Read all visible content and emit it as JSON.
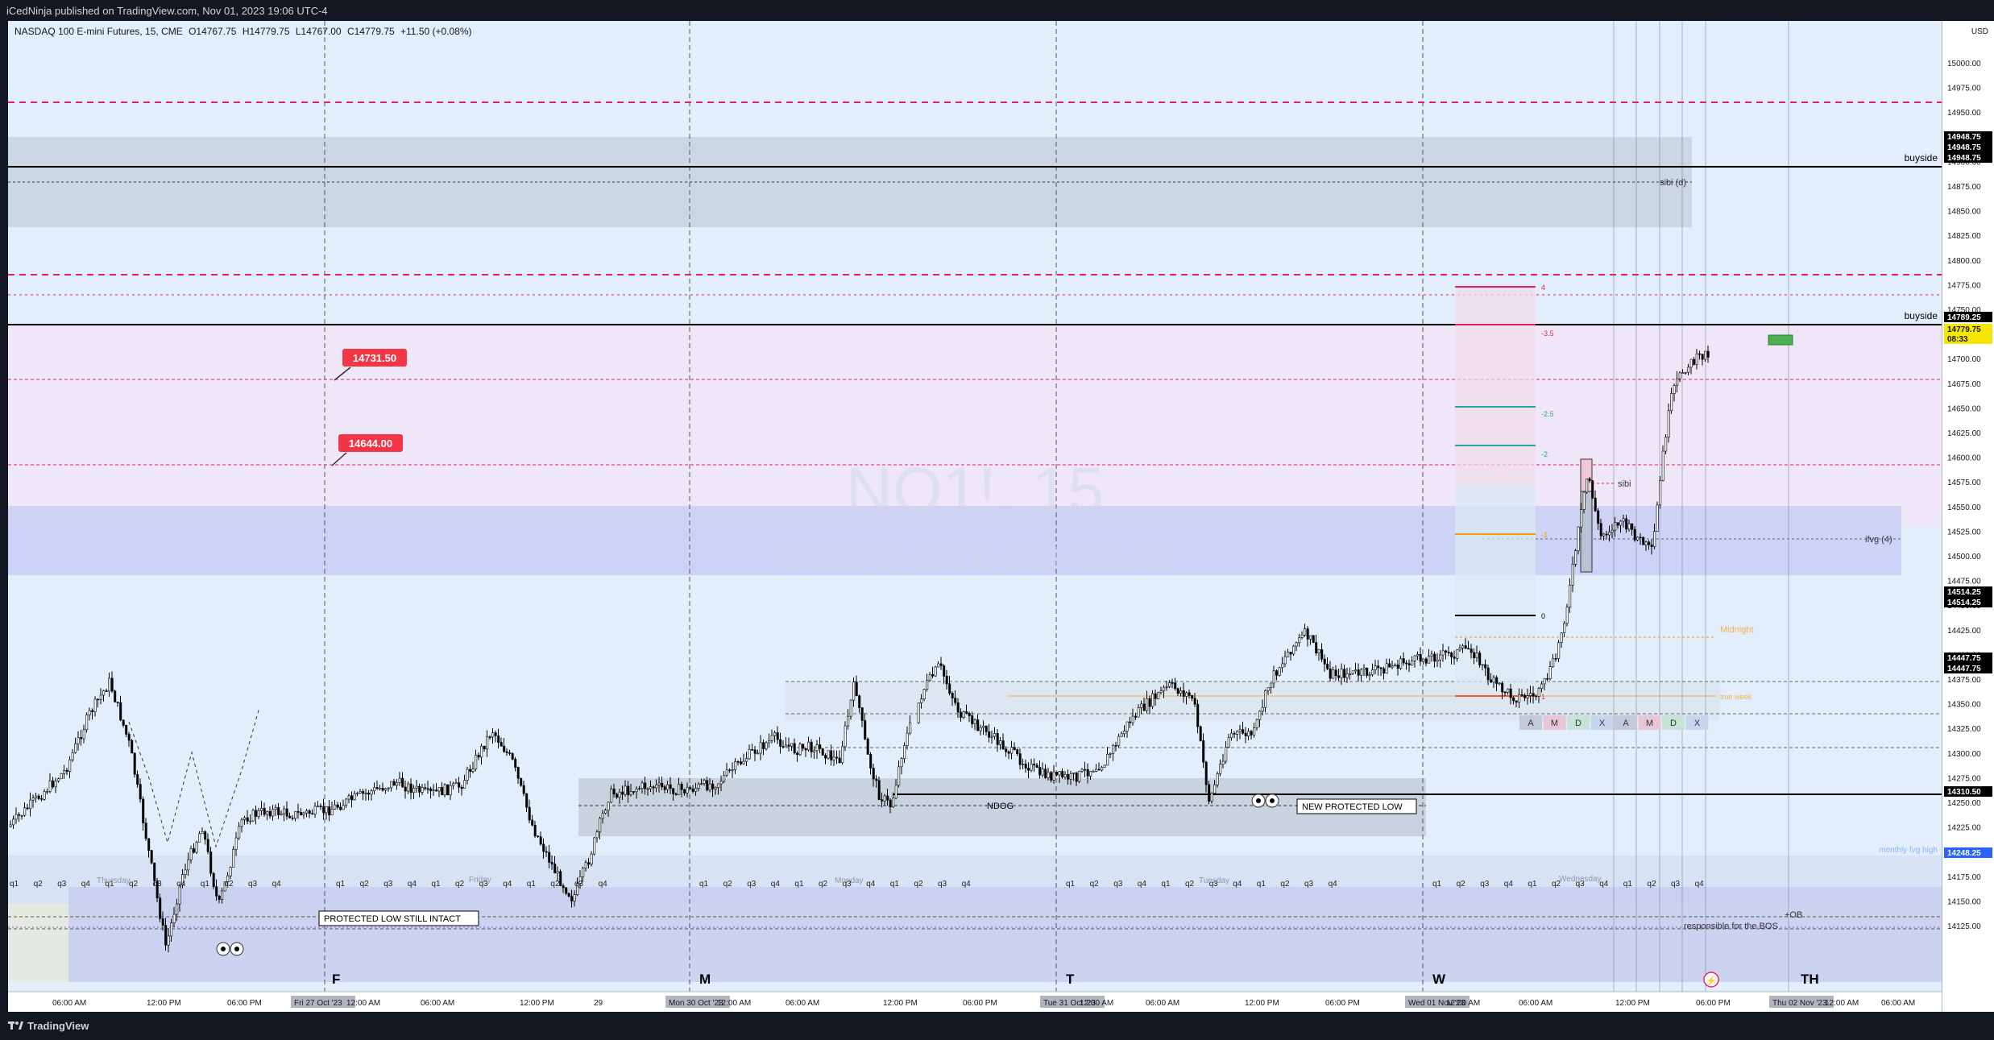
{
  "published_by": "iCedNinja published on TradingView.com, Nov 01, 2023 19:06 UTC-4",
  "brand": "TradingView",
  "legend": {
    "symbol": "NASDAQ 100 E-mini Futures, 15, CME",
    "open": "O14767.75",
    "high": "H14779.75",
    "low": "L14767.00",
    "close": "C14779.75",
    "change": "+11.50 (+0.08%)"
  },
  "watermark": {
    "ticker": "NQ1!, 15",
    "name": "NASDAQ 100 E-mini Futures"
  },
  "currency": "USD",
  "price_ticks": [
    "15000.00",
    "14975.00",
    "14950.00",
    "14925.00",
    "14900.00",
    "14875.00",
    "14850.00",
    "14825.00",
    "14800.00",
    "14775.00",
    "14750.00",
    "14725.00",
    "14700.00",
    "14675.00",
    "14650.00",
    "14625.00",
    "14600.00",
    "14575.00",
    "14550.00",
    "14525.00",
    "14500.00",
    "14475.00",
    "14450.00",
    "14425.00",
    "14400.00",
    "14375.00",
    "14350.00",
    "14325.00",
    "14300.00",
    "14275.00",
    "14250.00",
    "14225.00",
    "14200.00",
    "14175.00",
    "14150.00",
    "14125.00"
  ],
  "price_labels": {
    "buyside_high": [
      "14948.75",
      "14948.75",
      "14948.75"
    ],
    "buyside": "14789.25",
    "last_price": "14779.75",
    "countdown": "08:33",
    "midnight": [
      "14514.25",
      "14514.25"
    ],
    "mid2": [
      "14447.75",
      "14447.75"
    ],
    "sellside": "14310.50",
    "monthly": "14248.25"
  },
  "annotations": {
    "buyside_top": "buyside",
    "buyside_mid": "buyside",
    "sibi_d": "sibi (d)",
    "sibi": "sibi",
    "ifvg": "ifvg (4)",
    "midnight": "Midnight",
    "true_week": "true week",
    "ndog": "NDOG",
    "new_protected_low": "NEW PROTECTED LOW",
    "protected_low": "PROTECTED LOW STILL INTACT",
    "monthly_fvg": "monthly fvg high",
    "plus_ob": "+OB",
    "responsible": "responsible for the BOS",
    "marker_1": "14731.50",
    "marker_2": "14644.00"
  },
  "fib_levels": [
    "4",
    "-3.5",
    "-2.5",
    "-2",
    "-1",
    "0",
    "1"
  ],
  "session_boxes": [
    "A",
    "M",
    "D",
    "X",
    "A",
    "M",
    "D",
    "X"
  ],
  "quarter_labels": [
    "q1",
    "q2",
    "q3",
    "q4"
  ],
  "day_labels": [
    "F",
    "M",
    "T",
    "W",
    "TH"
  ],
  "faint_day_labels": [
    "Thursday",
    "Friday",
    "Monday",
    "Tuesday",
    "Wednesday"
  ],
  "time_axis": [
    "06:00 AM",
    "12:00 PM",
    "06:00 PM",
    "Fri 27 Oct '23",
    "12:00 AM",
    "06:00 AM",
    "12:00 PM",
    "29",
    "Mon 30 Oct '23",
    "12:00 AM",
    "06:00 AM",
    "12:00 PM",
    "06:00 PM",
    "Tue 31 Oct '23",
    "12:00 AM",
    "06:00 AM",
    "12:00 PM",
    "06:00 PM",
    "Wed 01 Nov '23",
    "12:00 AM",
    "06:00 AM",
    "12:00 PM",
    "06:00 PM",
    "Thu 02 Nov '23",
    "12:00 AM",
    "06:00 AM"
  ],
  "colors": {
    "up_candle": "#ffffff",
    "down_candle": "#000000",
    "buyside_line": "#000000",
    "key_level": "#e91e63",
    "marker_red": "#f23645",
    "midnight_line": "#ff9800",
    "last_price_bg": "#f7e600"
  }
}
